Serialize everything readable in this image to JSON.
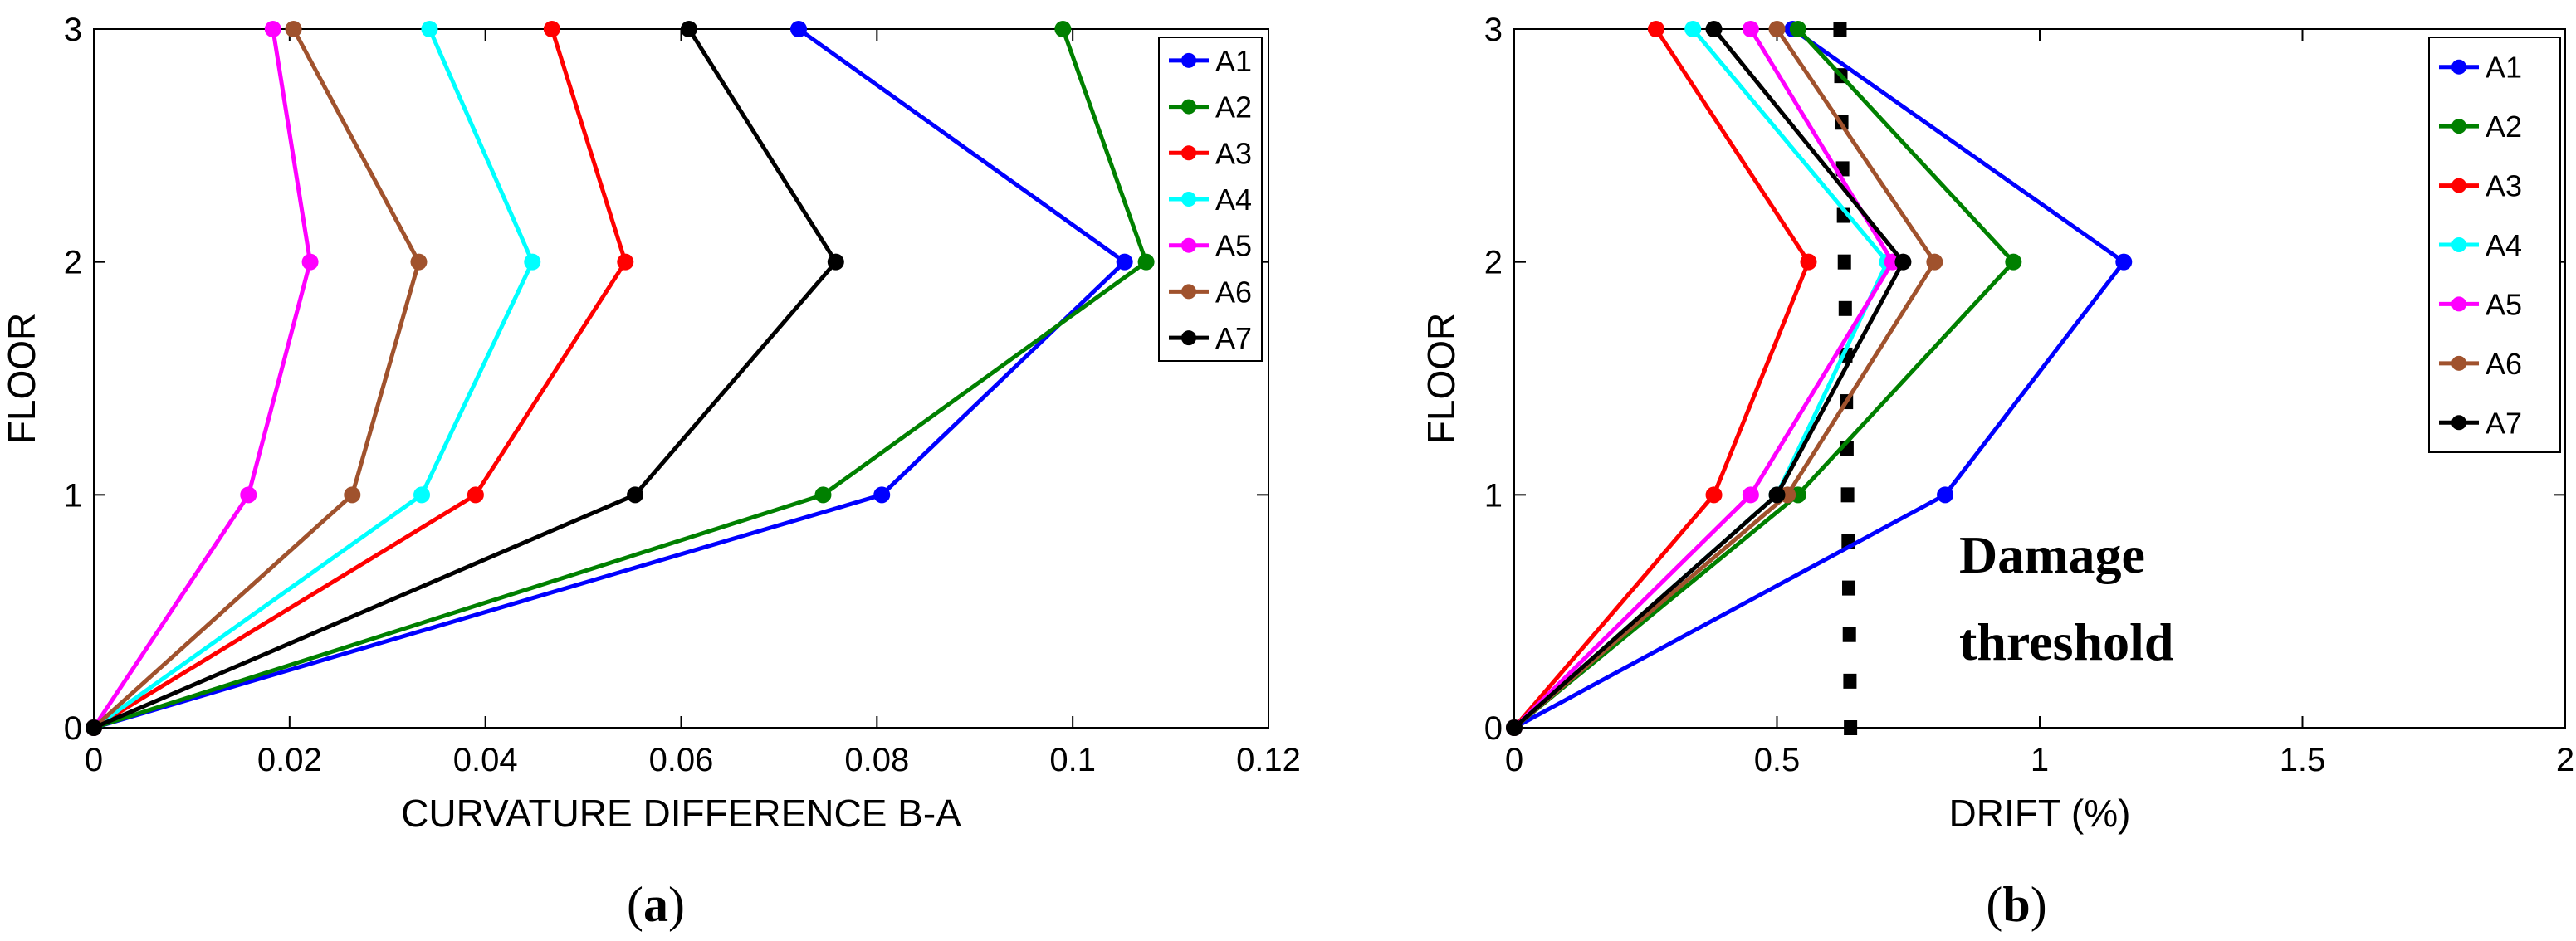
{
  "chart_data": [
    {
      "type": "line",
      "caption_prefix": "(",
      "caption_letter": "a",
      "caption_suffix": ")",
      "xlabel": "CURVATURE DIFFERENCE B-A",
      "ylabel": "FLOOR",
      "xlim": [
        0,
        0.12
      ],
      "ylim": [
        0,
        3
      ],
      "xticks": [
        0,
        0.02,
        0.04,
        0.06,
        0.08,
        0.1,
        0.12
      ],
      "xtick_labels": [
        "0",
        "0.02",
        "0.04",
        "0.06",
        "0.08",
        "0.1",
        "0.12"
      ],
      "yticks": [
        0,
        1,
        2,
        3
      ],
      "ytick_labels": [
        "0",
        "1",
        "2",
        "3"
      ],
      "grid": false,
      "legend_position": "top-right",
      "y": [
        0,
        1,
        2,
        3
      ],
      "series": [
        {
          "name": "A1",
          "color": "#0000ff",
          "x": [
            0,
            0.0805,
            0.1053,
            0.072
          ]
        },
        {
          "name": "A2",
          "color": "#008000",
          "x": [
            0,
            0.0745,
            0.1075,
            0.099
          ]
        },
        {
          "name": "A3",
          "color": "#ff0000",
          "x": [
            0,
            0.039,
            0.0543,
            0.0468
          ]
        },
        {
          "name": "A4",
          "color": "#00ffff",
          "x": [
            0,
            0.0335,
            0.0448,
            0.0343
          ]
        },
        {
          "name": "A5",
          "color": "#ff00ff",
          "x": [
            0,
            0.0158,
            0.0221,
            0.0183
          ]
        },
        {
          "name": "A6",
          "color": "#a0522d",
          "x": [
            0,
            0.0264,
            0.0332,
            0.0204
          ]
        },
        {
          "name": "A7",
          "color": "#000000",
          "x": [
            0,
            0.0553,
            0.0758,
            0.0608
          ]
        }
      ]
    },
    {
      "type": "line",
      "caption_prefix": "(",
      "caption_letter": "b",
      "caption_suffix": ")",
      "xlabel": "DRIFT (%)",
      "ylabel": "FLOOR",
      "xlim": [
        0,
        2
      ],
      "ylim": [
        0,
        3
      ],
      "xticks": [
        0,
        0.5,
        1,
        1.5,
        2
      ],
      "xtick_labels": [
        "0",
        "0.5",
        "1",
        "1.5",
        "2"
      ],
      "yticks": [
        0,
        1,
        2,
        3
      ],
      "ytick_labels": [
        "0",
        "1",
        "2",
        "3"
      ],
      "grid": false,
      "legend_position": "top-right",
      "y": [
        0,
        1,
        2,
        3
      ],
      "series": [
        {
          "name": "A1",
          "color": "#0000ff",
          "x": [
            0,
            0.82,
            1.16,
            0.53
          ]
        },
        {
          "name": "A2",
          "color": "#008000",
          "x": [
            0,
            0.54,
            0.95,
            0.54
          ]
        },
        {
          "name": "A3",
          "color": "#ff0000",
          "x": [
            0,
            0.38,
            0.56,
            0.27
          ]
        },
        {
          "name": "A4",
          "color": "#00ffff",
          "x": [
            0,
            0.5,
            0.71,
            0.34
          ]
        },
        {
          "name": "A5",
          "color": "#ff00ff",
          "x": [
            0,
            0.45,
            0.72,
            0.45
          ]
        },
        {
          "name": "A6",
          "color": "#a0522d",
          "x": [
            0,
            0.52,
            0.8,
            0.5
          ]
        },
        {
          "name": "A7",
          "color": "#000000",
          "x": [
            0,
            0.5,
            0.74,
            0.38
          ]
        }
      ],
      "threshold": {
        "label_line1": "Damage",
        "label_line2": "threshold",
        "x": [
          0.64,
          0.63,
          0.62
        ],
        "y": [
          0,
          1.8,
          3
        ],
        "color": "#000000"
      }
    }
  ]
}
